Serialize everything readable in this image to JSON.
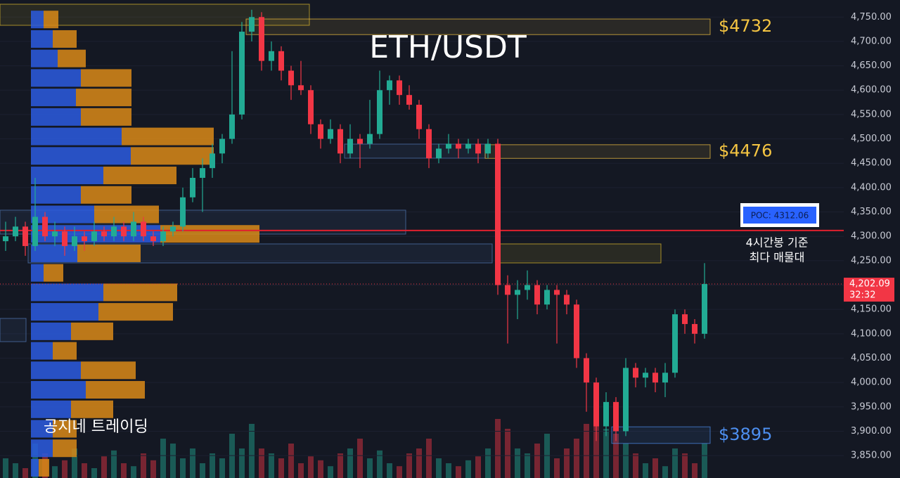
{
  "chart_data": {
    "type": "candlestick",
    "title": "ETH/USDT",
    "up_color": "#22ab94",
    "down_color": "#f23645",
    "ylim": [
      3804,
      4785
    ],
    "grid": true,
    "yticks": [
      {
        "value": 3850,
        "label": "3,850.00"
      },
      {
        "value": 3900,
        "label": "3,900.00"
      },
      {
        "value": 3950,
        "label": "3,950.00"
      },
      {
        "value": 4000,
        "label": "4,000.00"
      },
      {
        "value": 4050,
        "label": "4,050.00"
      },
      {
        "value": 4100,
        "label": "4,100.00"
      },
      {
        "value": 4150,
        "label": "4,150.00"
      },
      {
        "value": 4200,
        "label": "4,200.00"
      },
      {
        "value": 4250,
        "label": "4,250.00"
      },
      {
        "value": 4300,
        "label": "4,300.00"
      },
      {
        "value": 4350,
        "label": "4,350.00"
      },
      {
        "value": 4400,
        "label": "4,400.00"
      },
      {
        "value": 4450,
        "label": "4,450.00"
      },
      {
        "value": 4500,
        "label": "4,500.00"
      },
      {
        "value": 4550,
        "label": "4,550.00"
      },
      {
        "value": 4600,
        "label": "4,600.00"
      },
      {
        "value": 4650,
        "label": "4,650.00"
      },
      {
        "value": 4700,
        "label": "4,700.00"
      },
      {
        "value": 4750,
        "label": "4,750.00"
      }
    ],
    "ohlc": [
      [
        4290,
        4330,
        4270,
        4300
      ],
      [
        4300,
        4340,
        4290,
        4320
      ],
      [
        4320,
        4330,
        4260,
        4280
      ],
      [
        4280,
        4420,
        4270,
        4340
      ],
      [
        4340,
        4350,
        4290,
        4300
      ],
      [
        4300,
        4330,
        4280,
        4310
      ],
      [
        4310,
        4320,
        4260,
        4280
      ],
      [
        4280,
        4320,
        4270,
        4300
      ],
      [
        4300,
        4310,
        4270,
        4290
      ],
      [
        4290,
        4330,
        4280,
        4310
      ],
      [
        4310,
        4320,
        4290,
        4300
      ],
      [
        4300,
        4340,
        4290,
        4320
      ],
      [
        4320,
        4330,
        4290,
        4300
      ],
      [
        4300,
        4350,
        4290,
        4330
      ],
      [
        4330,
        4340,
        4290,
        4300
      ],
      [
        4300,
        4310,
        4280,
        4290
      ],
      [
        4290,
        4320,
        4280,
        4310
      ],
      [
        4310,
        4330,
        4300,
        4320
      ],
      [
        4320,
        4400,
        4310,
        4380
      ],
      [
        4380,
        4440,
        4370,
        4420
      ],
      [
        4420,
        4460,
        4350,
        4440
      ],
      [
        4440,
        4490,
        4420,
        4470
      ],
      [
        4470,
        4510,
        4450,
        4500
      ],
      [
        4500,
        4680,
        4490,
        4550
      ],
      [
        4550,
        4740,
        4540,
        4720
      ],
      [
        4720,
        4765,
        4700,
        4750
      ],
      [
        4750,
        4760,
        4640,
        4660
      ],
      [
        4660,
        4700,
        4640,
        4680
      ],
      [
        4680,
        4690,
        4620,
        4640
      ],
      [
        4640,
        4650,
        4580,
        4610
      ],
      [
        4610,
        4660,
        4590,
        4600
      ],
      [
        4600,
        4610,
        4510,
        4530
      ],
      [
        4530,
        4540,
        4480,
        4500
      ],
      [
        4500,
        4540,
        4490,
        4520
      ],
      [
        4520,
        4530,
        4450,
        4470
      ],
      [
        4470,
        4530,
        4460,
        4500
      ],
      [
        4500,
        4510,
        4440,
        4490
      ],
      [
        4490,
        4580,
        4480,
        4510
      ],
      [
        4510,
        4640,
        4500,
        4600
      ],
      [
        4600,
        4630,
        4570,
        4620
      ],
      [
        4620,
        4630,
        4570,
        4590
      ],
      [
        4590,
        4610,
        4560,
        4570
      ],
      [
        4570,
        4580,
        4500,
        4520
      ],
      [
        4520,
        4530,
        4440,
        4460
      ],
      [
        4460,
        4490,
        4450,
        4480
      ],
      [
        4480,
        4510,
        4470,
        4490
      ],
      [
        4490,
        4500,
        4460,
        4480
      ],
      [
        4480,
        4500,
        4470,
        4490
      ],
      [
        4490,
        4500,
        4450,
        4470
      ],
      [
        4470,
        4500,
        4460,
        4490
      ],
      [
        4490,
        4500,
        4180,
        4200
      ],
      [
        4200,
        4220,
        4080,
        4180
      ],
      [
        4180,
        4210,
        4130,
        4190
      ],
      [
        4190,
        4230,
        4170,
        4200
      ],
      [
        4200,
        4210,
        4140,
        4160
      ],
      [
        4160,
        4200,
        4150,
        4190
      ],
      [
        4190,
        4200,
        4080,
        4180
      ],
      [
        4180,
        4190,
        4140,
        4160
      ],
      [
        4160,
        4170,
        4030,
        4050
      ],
      [
        4050,
        4060,
        3940,
        4000
      ],
      [
        4000,
        4010,
        3880,
        3910
      ],
      [
        3910,
        3980,
        3890,
        3960
      ],
      [
        3960,
        3970,
        3880,
        3900
      ],
      [
        3900,
        4050,
        3890,
        4030
      ],
      [
        4030,
        4040,
        3990,
        4010
      ],
      [
        4010,
        4030,
        3990,
        4020
      ],
      [
        4020,
        4030,
        3980,
        4000
      ],
      [
        4000,
        4040,
        3970,
        4020
      ],
      [
        4020,
        4150,
        4010,
        4140
      ],
      [
        4140,
        4150,
        4100,
        4120
      ],
      [
        4120,
        4130,
        4080,
        4100
      ],
      [
        4100,
        4245,
        4090,
        4202.09
      ]
    ],
    "volume_lim": [
      0,
      100
    ],
    "volume": [
      20,
      15,
      10,
      35,
      25,
      12,
      18,
      30,
      15,
      10,
      22,
      28,
      15,
      12,
      25,
      18,
      40,
      35,
      20,
      30,
      15,
      25,
      20,
      45,
      30,
      55,
      30,
      25,
      20,
      35,
      15,
      22,
      18,
      12,
      25,
      30,
      40,
      20,
      28,
      15,
      12,
      25,
      30,
      40,
      20,
      15,
      12,
      18,
      22,
      30,
      60,
      50,
      30,
      25,
      35,
      45,
      20,
      30,
      40,
      55,
      70,
      50,
      45,
      35,
      25,
      15,
      20,
      12,
      30,
      25,
      15,
      35
    ],
    "volume_profile": {
      "buy_color": "#2c5ce0",
      "sell_color": "#d98a17",
      "levels": [
        4745,
        4705,
        4665,
        4625,
        4585,
        4545,
        4505,
        4465,
        4425,
        4385,
        4345,
        4305,
        4265,
        4225,
        4185,
        4145,
        4105,
        4065,
        4025,
        3985,
        3945,
        3905,
        3865,
        3825
      ],
      "buy": [
        18,
        31,
        38,
        71,
        64,
        71,
        129,
        142,
        103,
        71,
        90,
        184,
        66,
        18,
        103,
        96,
        57,
        31,
        71,
        78,
        57,
        31,
        31,
        11
      ],
      "sell": [
        21,
        34,
        40,
        72,
        79,
        72,
        131,
        118,
        104,
        72,
        92,
        141,
        90,
        28,
        105,
        106,
        60,
        34,
        78,
        84,
        60,
        34,
        34,
        15
      ]
    },
    "price_levels": [
      {
        "label": "$4732",
        "high": 4746,
        "low": 4714,
        "color": "#f5c542"
      },
      {
        "label": "$4476",
        "high": 4488,
        "low": 4460,
        "color": "#f5c542"
      },
      {
        "label": "$3895",
        "high": 3909,
        "low": 3875,
        "color": "#4d8ff0"
      }
    ],
    "poc": {
      "value": 4312.06,
      "label": "POC: 4312.06",
      "note": [
        "4시간봉 기준",
        "최다 매물대"
      ]
    },
    "last_price": {
      "value": 4202.09,
      "label": "4,202.09",
      "countdown": "32:32"
    }
  },
  "watermark": "공지네 트레이딩"
}
